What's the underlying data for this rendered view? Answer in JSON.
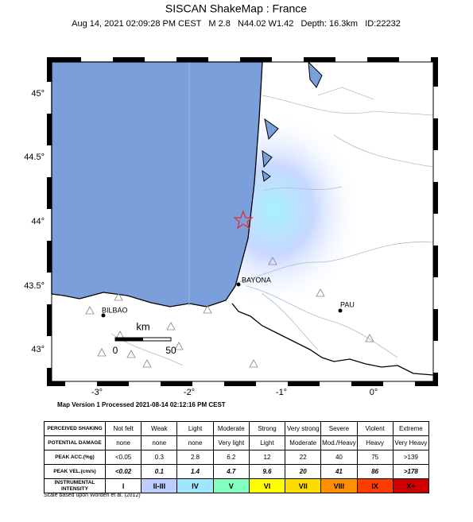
{
  "header": {
    "title": "SISCAN ShakeMap : France",
    "subtitle": "Aug 14, 2021 02:09:28 PM CEST   M 2.8   N44.02 W1.42   Depth: 16.3km   ID:22232"
  },
  "map": {
    "lat_labels": [
      "45°",
      "44.5°",
      "44°",
      "43.5°",
      "43°"
    ],
    "lon_labels": [
      "-3°",
      "-2°",
      "-1°",
      "0°"
    ],
    "cities": [
      "BAYONA",
      "BILBAO",
      "PAU"
    ],
    "scale": {
      "unit": "km",
      "start": "0",
      "end": "50"
    }
  },
  "processed": "Map Version 1 Processed 2021-08-14 02:12:16 PM CEST",
  "legend": {
    "rows": [
      [
        "PERCEIVED SHAKING",
        "Not felt",
        "Weak",
        "Light",
        "Moderate",
        "Strong",
        "Very strong",
        "Severe",
        "Violent",
        "Extreme"
      ],
      [
        "POTENTIAL DAMAGE",
        "none",
        "none",
        "none",
        "Very light",
        "Light",
        "Moderate",
        "Mod./Heavy",
        "Heavy",
        "Very Heavy"
      ],
      [
        "PEAK ACC.(%g)",
        "<0.05",
        "0.3",
        "2.8",
        "6.2",
        "12",
        "22",
        "40",
        "75",
        ">139"
      ],
      [
        "PEAK VEL.(cm/s)",
        "<0.02",
        "0.1",
        "1.4",
        "4.7",
        "9.6",
        "20",
        "41",
        "86",
        ">178"
      ],
      [
        "INSTRUMENTAL INTENSITY",
        "I",
        "II-III",
        "IV",
        "V",
        "VI",
        "VII",
        "VIII",
        "IX",
        "X+"
      ]
    ]
  },
  "footnote": "Scale based upon Worden et al. (2012)"
}
